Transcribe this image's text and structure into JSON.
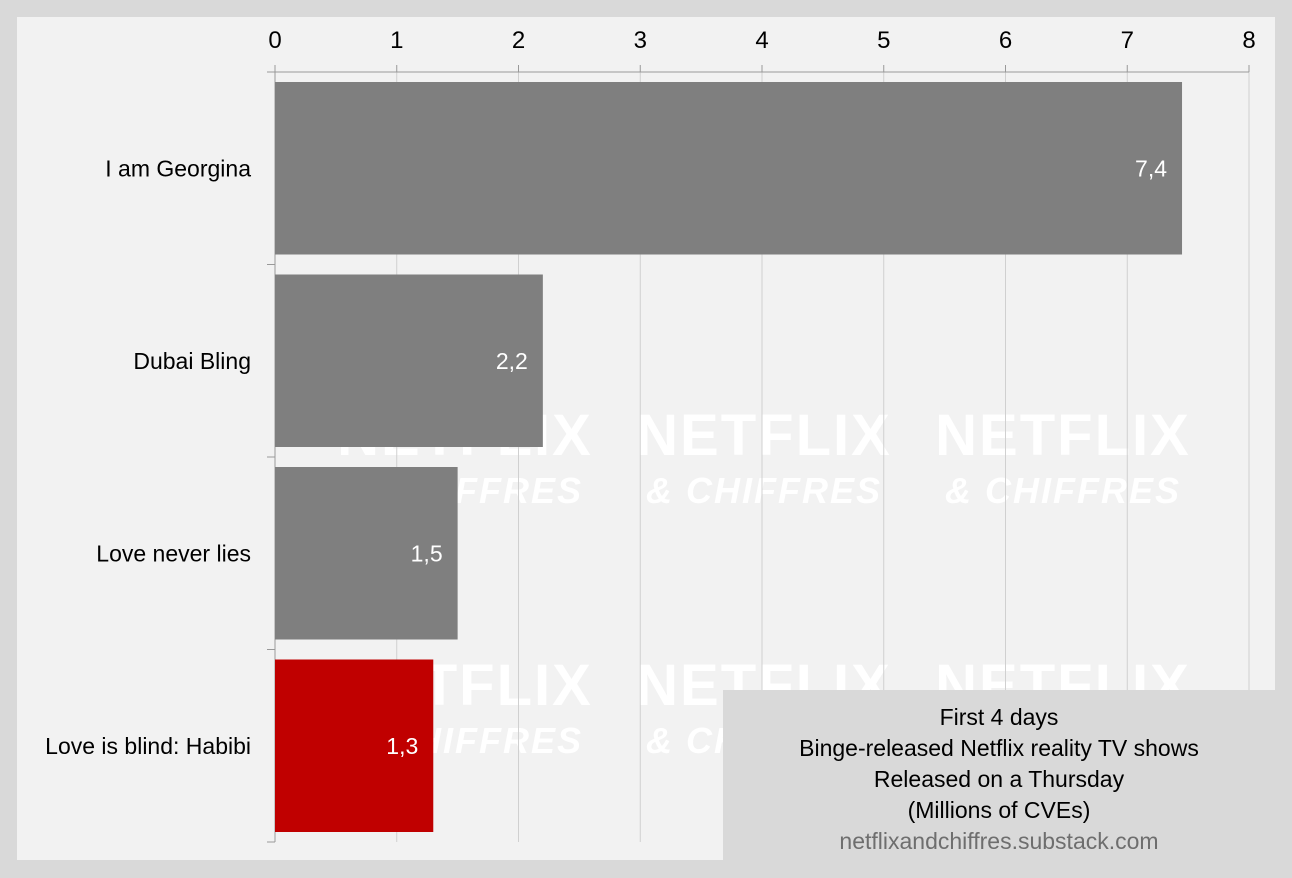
{
  "chart_data": {
    "type": "bar",
    "orientation": "horizontal",
    "categories": [
      "I am Georgina",
      "Dubai Bling",
      "Love never lies",
      "Love is blind: Habibi"
    ],
    "values": [
      7.45,
      2.2,
      1.5,
      1.3
    ],
    "value_labels": [
      "7,4",
      "2,2",
      "1,5",
      "1,3"
    ],
    "bar_colors": [
      "#7f7f7f",
      "#7f7f7f",
      "#7f7f7f",
      "#c00000"
    ],
    "xlim": [
      0,
      8
    ],
    "x_ticks": [
      "0",
      "1",
      "2",
      "3",
      "4",
      "5",
      "6",
      "7",
      "8"
    ],
    "x_axis_position": "top",
    "grid": true,
    "legend_placement": "bottom-right",
    "title_lines": [
      "First 4 days",
      "Binge-released Netflix reality TV shows",
      "Released on a Thursday",
      "(Millions of CVEs)"
    ],
    "source": "netflixandchiffres.substack.com",
    "watermark": [
      "NETFLIX",
      "& CHIFFRES"
    ]
  }
}
